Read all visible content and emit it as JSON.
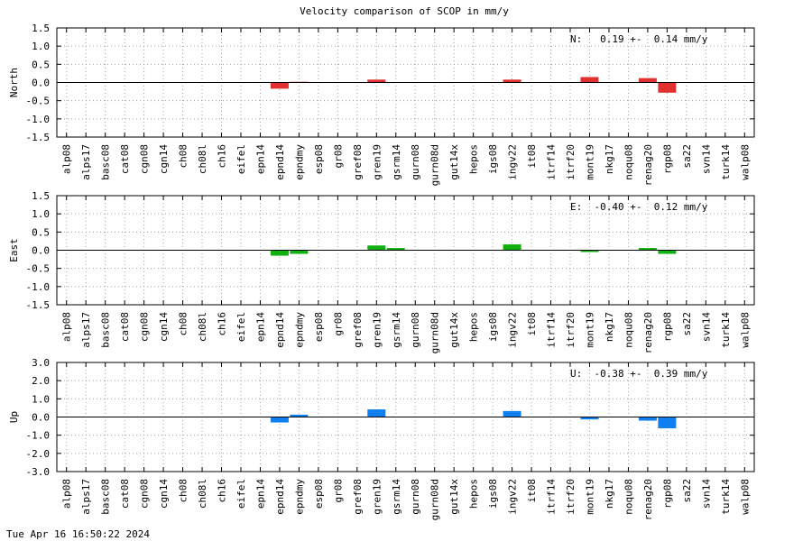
{
  "chart_data": {
    "title": "Velocity comparison of SCOP in mm/y",
    "categories": [
      "alp08",
      "alps17",
      "basc08",
      "cat08",
      "cgn08",
      "cgn14",
      "ch08",
      "ch08l",
      "ch16",
      "eifel",
      "epn14",
      "epnd14",
      "epndmy",
      "esp08",
      "gr08",
      "gref08",
      "gren19",
      "gsrm14",
      "gurn08",
      "gurn08d",
      "gut14x",
      "hepos",
      "igs08",
      "ingv22",
      "it08",
      "itrf14",
      "itrf20",
      "mont19",
      "nkg17",
      "noqu08",
      "renag20",
      "rgp08",
      "sa22",
      "svn14",
      "turk14",
      "walp08"
    ],
    "panels": [
      {
        "type": "bar",
        "ylabel": "North",
        "ylim": [
          -1.5,
          1.5
        ],
        "yticks": [
          1.5,
          1.0,
          0.5,
          0.0,
          -0.5,
          -1.0,
          -1.5
        ],
        "ytick_labels": [
          "1.5",
          "1.0",
          "0.5",
          "0.0",
          "-0.5",
          "-1.0",
          "-1.5"
        ],
        "color": "#e03030",
        "annotation": "N:   0.19 +-  0.14 mm/y",
        "values": {
          "epnd14": -0.17,
          "epndmy": 0.02,
          "gren19": 0.08,
          "ingv22": 0.08,
          "mont19": 0.15,
          "renag20": 0.12,
          "rgp08": -0.28
        }
      },
      {
        "type": "bar",
        "ylabel": "East",
        "ylim": [
          -1.5,
          1.5
        ],
        "yticks": [
          1.5,
          1.0,
          0.5,
          0.0,
          -0.5,
          -1.0,
          -1.5
        ],
        "ytick_labels": [
          "1.5",
          "1.0",
          "0.5",
          "0.0",
          "-0.5",
          "-1.0",
          "-1.5"
        ],
        "color": "#10b010",
        "annotation": "E:  -0.40 +-  0.12 mm/y",
        "values": {
          "epnd14": -0.15,
          "epndmy": -0.1,
          "gren19": 0.13,
          "gsrm14": 0.06,
          "ingv22": 0.16,
          "mont19": -0.05,
          "renag20": 0.06,
          "rgp08": -0.1
        }
      },
      {
        "type": "bar",
        "ylabel": "Up",
        "ylim": [
          -3.0,
          3.0
        ],
        "yticks": [
          3.0,
          2.0,
          1.0,
          0.0,
          -1.0,
          -2.0,
          -3.0
        ],
        "ytick_labels": [
          "3.0",
          "2.0",
          "1.0",
          "0.0",
          "-1.0",
          "-2.0",
          "-3.0"
        ],
        "color": "#1080f0",
        "annotation": "U:  -0.38 +-  0.39 mm/y",
        "values": {
          "epnd14": -0.3,
          "epndmy": 0.13,
          "gren19": 0.42,
          "ingv22": 0.33,
          "mont19": -0.13,
          "renag20": -0.2,
          "rgp08": -0.62
        }
      }
    ]
  },
  "timestamp": "Tue Apr 16 16:50:22 2024"
}
